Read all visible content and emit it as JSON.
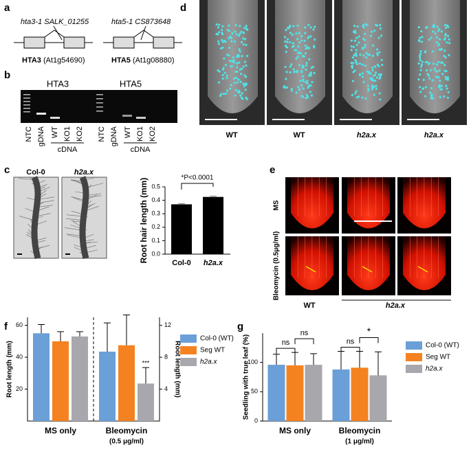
{
  "panel_labels": [
    "a",
    "b",
    "c",
    "d",
    "e",
    "f",
    "g"
  ],
  "panel_a": {
    "genes": [
      {
        "allele": "hta3-1 SALK_01255",
        "name": "HTA3",
        "locus": "(At1g54690)"
      },
      {
        "allele": "hta5-1 CS873648",
        "name": "HTA5",
        "locus": "(At1g08880)"
      }
    ]
  },
  "panel_b": {
    "gels": [
      "HTA3",
      "HTA5"
    ],
    "lanes": [
      "NTC",
      "gDNA",
      "WT",
      "KO1",
      "KO2"
    ],
    "group": "cDNA"
  },
  "panel_c": {
    "images": [
      "Col-0",
      "h2a.x"
    ]
  },
  "panel_d": {
    "images": [
      "WT",
      "WT",
      "h2a.x",
      "h2a.x"
    ]
  },
  "panel_e": {
    "rows": [
      "MS",
      "Bleomycin (0.5μg/ml)"
    ],
    "columns": [
      "WT",
      "h2a.x"
    ]
  },
  "chart_data": [
    {
      "type": "bar",
      "ylabel": "Root hair length (mm)",
      "categories": [
        "Col-0",
        "h2a.x"
      ],
      "values": [
        0.37,
        0.425
      ],
      "errors": [
        0.005,
        0.006
      ],
      "color": "#000000",
      "ylim": [
        0,
        0.5
      ],
      "yticks": [
        {
          "value": 0,
          "label": "0.0"
        },
        0.1,
        0.2,
        0.3,
        0.4,
        0.5
      ],
      "annotation": "*P<0.0001"
    },
    {
      "type": "bar",
      "ylabel": "Root length (mm)",
      "y2label": "Root length (mm)",
      "groups": [
        {
          "name": "MS only",
          "axis": "y",
          "values": [
            55,
            50,
            53
          ],
          "errors": [
            5.5,
            6,
            3
          ]
        },
        {
          "name": "Bleomycin",
          "subtitle": "(0.5 μg/ml)",
          "axis": "y2",
          "values": [
            8.7,
            9.5,
            4.7
          ],
          "errors": [
            3.6,
            3.8,
            2
          ]
        }
      ],
      "series": [
        {
          "name": "Col-0 (WT)",
          "color": "#6a9fd8"
        },
        {
          "name": "Seg WT",
          "color": "#f58220"
        },
        {
          "name": "h2a.x",
          "color": "#a7a7ad"
        }
      ],
      "ylim": [
        0,
        65
      ],
      "yticks": [
        20,
        40,
        60
      ],
      "y2lim": [
        0,
        13
      ],
      "y2ticks": [
        4,
        8,
        12
      ],
      "annotation": "***"
    },
    {
      "type": "bar",
      "ylabel": "Seedling with true leaf (%)",
      "groups": [
        {
          "name": "MS only",
          "values": [
            96,
            95,
            96
          ],
          "errors": [
            18,
            22,
            19
          ]
        },
        {
          "name": "Bleomycin",
          "subtitle": "(1 μg/ml)",
          "values": [
            88,
            91,
            78
          ],
          "errors": [
            31,
            28,
            40
          ]
        }
      ],
      "series": [
        {
          "name": "Col-0 (WT)",
          "color": "#6a9fd8"
        },
        {
          "name": "Seg WT",
          "color": "#f58220"
        },
        {
          "name": "h2a.x",
          "color": "#a7a7ad"
        }
      ],
      "ylim": [
        0,
        150
      ],
      "yticks": [
        0,
        50,
        100
      ],
      "annotations": [
        "ns",
        "ns",
        "ns",
        "*"
      ]
    }
  ]
}
